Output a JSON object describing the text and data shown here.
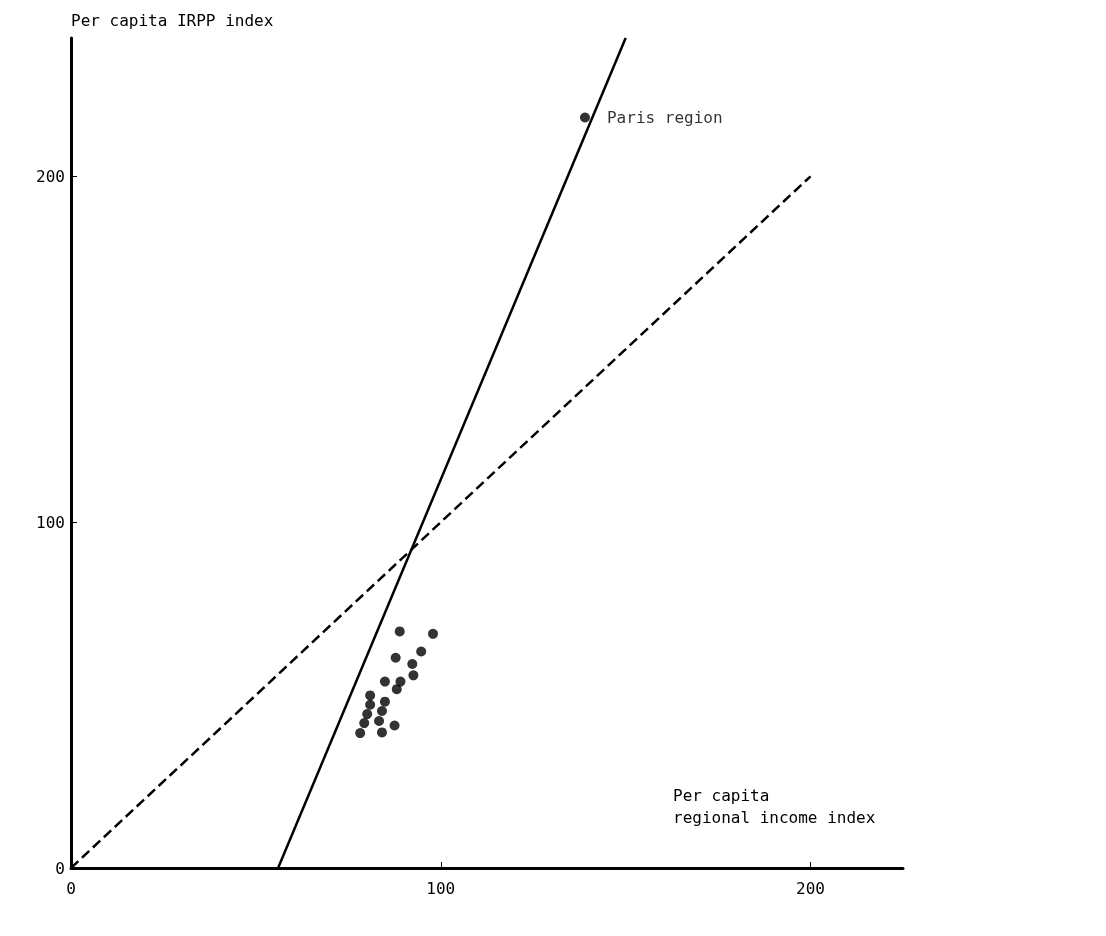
{
  "chart_data": {
    "type": "scatter",
    "xlabel": "Per capita\nregional income index",
    "ylabel": "Per capita IRPP index",
    "xlim": [
      0,
      225
    ],
    "ylim": [
      0,
      240
    ],
    "xticks": [
      0,
      100,
      200
    ],
    "yticks": [
      0,
      100,
      200
    ],
    "grid": false,
    "marker": "circle",
    "annotations": [
      {
        "text": "Paris region",
        "x": 139,
        "y": 217
      }
    ],
    "series": [
      {
        "color": "#000000",
        "x": [
          88.9,
          97.9,
          87.8,
          94.7,
          92.3,
          92.6,
          84.9,
          89.1,
          88.1,
          80.9,
          84.9,
          80.9,
          84.1,
          80.1,
          83.3,
          79.3,
          87.5,
          84.1,
          78.2,
          139
        ],
        "values": [
          68.4,
          67.7,
          60.8,
          62.6,
          59.0,
          55.7,
          53.9,
          53.9,
          51.7,
          49.9,
          48.1,
          47.2,
          45.4,
          44.5,
          42.5,
          41.9,
          41.2,
          39.2,
          39.0,
          217
        ]
      },
      {
        "type": "line",
        "color": "#000000",
        "line_style": "solid",
        "marker": "none",
        "x": [
          56,
          150
        ],
        "values": [
          0,
          240
        ]
      },
      {
        "type": "line",
        "color": "#000000",
        "line_style": "dashed",
        "marker": "none",
        "x": [
          0,
          200
        ],
        "values": [
          0,
          200
        ]
      }
    ]
  }
}
